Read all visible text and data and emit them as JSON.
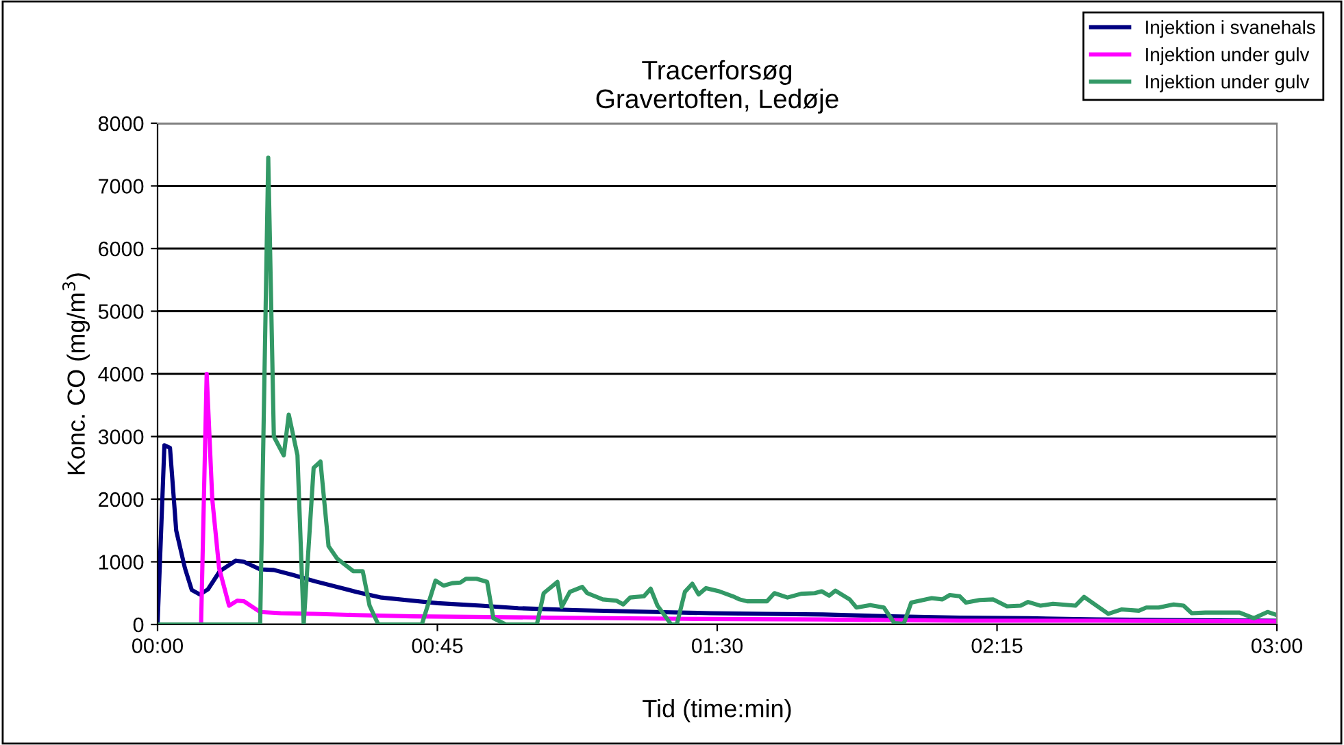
{
  "chart_data": {
    "type": "line",
    "title": "Tracerforsøg\nGravertoften, Ledøje",
    "xlabel": "Tid (time:min)",
    "ylabel": "Konc. CO (mg/m$^{3}$)",
    "xlim": [
      0,
      180
    ],
    "xticks": [
      {
        "value": 0,
        "label": "00:00"
      },
      {
        "value": 45,
        "label": "00:45"
      },
      {
        "value": 90,
        "label": "01:30"
      },
      {
        "value": 135,
        "label": "02:15"
      },
      {
        "value": 180,
        "label": "03:00"
      }
    ],
    "ylim": [
      0,
      8000
    ],
    "yticks": [
      0,
      1000,
      2000,
      3000,
      4000,
      5000,
      6000,
      7000,
      8000
    ],
    "grid": "y",
    "legend": "top right",
    "marker": "none",
    "line_style": "solid",
    "series": [
      {
        "name": "Injektion i svanehals",
        "color": "#000080",
        "x": [
          0,
          1.1,
          2,
          3,
          4.4,
          5.5,
          6.8,
          8.1,
          10,
          12.6,
          13.9,
          16.5,
          18.7,
          21.8,
          25.3,
          32,
          36,
          41,
          45,
          52,
          58,
          67,
          80,
          89,
          98,
          107,
          118,
          129,
          140,
          151,
          162,
          180
        ],
        "values": [
          0,
          2860,
          2820,
          1500,
          900,
          550,
          480,
          560,
          850,
          1020,
          1000,
          880,
          870,
          790,
          690,
          520,
          430,
          380,
          340,
          300,
          260,
          230,
          200,
          180,
          170,
          160,
          130,
          110,
          100,
          80,
          70,
          60
        ]
      },
      {
        "name": "Injektion under gulv",
        "color": "#ff00ff",
        "x": [
          0,
          7,
          7.9,
          8.8,
          9.9,
          11.5,
          12.8,
          13.9,
          16.5,
          19.8,
          25.3,
          32,
          41,
          63,
          85,
          107,
          129,
          151,
          180
        ],
        "values": [
          0,
          0,
          4000,
          2000,
          900,
          300,
          380,
          370,
          200,
          180,
          170,
          150,
          130,
          110,
          90,
          80,
          60,
          60,
          50
        ]
      },
      {
        "name": "Injektion under gulv",
        "color": "#339966",
        "x": [
          0,
          16.5,
          17.8,
          18.7,
          20.3,
          21.1,
          22.5,
          23.5,
          25.1,
          26.2,
          27.5,
          28.9,
          30.2,
          31.5,
          33,
          34.1,
          35.5,
          42.5,
          44.7,
          46,
          47.4,
          48.7,
          49.6,
          51.3,
          53,
          54,
          56,
          61,
          62.1,
          64.3,
          65,
          66.3,
          68.3,
          69.1,
          71.6,
          73.8,
          74.9,
          76,
          78.2,
          79.3,
          80.4,
          82.6,
          83.5,
          84.8,
          86,
          87,
          88.2,
          90.3,
          92.5,
          93.6,
          94.8,
          98,
          99.2,
          101.3,
          103.5,
          105.7,
          106.8,
          108,
          109,
          111.3,
          112.4,
          114.6,
          116.8,
          118.5,
          120,
          121.2,
          124.5,
          126.2,
          127.4,
          129,
          130,
          132.2,
          134.4,
          136.6,
          138.8,
          140,
          142,
          144,
          147.6,
          149,
          151,
          152.9,
          155,
          157.8,
          159,
          161,
          163.4,
          165,
          166.3,
          168.5,
          174,
          176.3,
          178.5,
          180
        ],
        "values": [
          0,
          0,
          7450,
          3000,
          2700,
          3350,
          2700,
          0,
          2500,
          2600,
          1250,
          1050,
          950,
          850,
          850,
          300,
          0,
          0,
          700,
          620,
          660,
          670,
          730,
          730,
          680,
          100,
          0,
          0,
          500,
          680,
          280,
          520,
          600,
          500,
          400,
          380,
          320,
          430,
          450,
          570,
          300,
          0,
          0,
          520,
          650,
          480,
          580,
          530,
          450,
          400,
          370,
          370,
          500,
          430,
          490,
          500,
          530,
          460,
          540,
          400,
          270,
          310,
          270,
          20,
          10,
          350,
          420,
          400,
          470,
          450,
          350,
          390,
          400,
          290,
          300,
          360,
          300,
          330,
          300,
          440,
          300,
          170,
          240,
          220,
          270,
          270,
          320,
          300,
          180,
          190,
          190,
          100,
          200,
          150
        ]
      }
    ]
  }
}
